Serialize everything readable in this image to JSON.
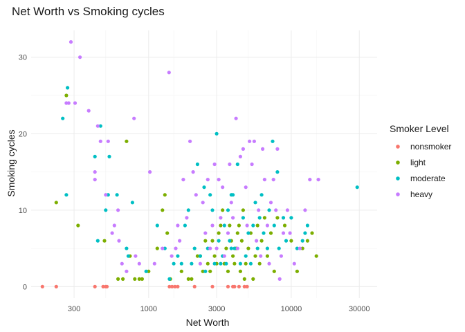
{
  "chart_data": {
    "type": "scatter",
    "title": "Net Worth vs Smoking cycles",
    "xlabel": "Net Worth",
    "ylabel": "Smoking cycles",
    "x_scale": "log10",
    "xlim": [
      150,
      40000
    ],
    "ylim": [
      -1.5,
      33.5
    ],
    "x_ticks": [
      300,
      1000,
      3000,
      10000,
      30000
    ],
    "x_tick_labels": [
      "300",
      "1000",
      "3000",
      "10000",
      "30000"
    ],
    "x_minor_ticks": [
      500,
      1500,
      5000,
      15000
    ],
    "y_ticks": [
      0,
      10,
      20,
      30
    ],
    "y_tick_labels": [
      "0",
      "10",
      "20",
      "30"
    ],
    "grid": true,
    "legend": {
      "title": "Smoker Level",
      "position": "right"
    },
    "series": [
      {
        "name": "nonsmoker",
        "color": "#F8766D",
        "points": [
          [
            180,
            0
          ],
          [
            225,
            0
          ],
          [
            420,
            0
          ],
          [
            480,
            0
          ],
          [
            500,
            0
          ],
          [
            510,
            0
          ],
          [
            1400,
            0
          ],
          [
            1460,
            0
          ],
          [
            1530,
            0
          ],
          [
            1600,
            0
          ],
          [
            2800,
            0
          ],
          [
            3600,
            0
          ],
          [
            3900,
            0
          ],
          [
            4000,
            0
          ],
          [
            4300,
            0
          ],
          [
            4700,
            0
          ],
          [
            4900,
            0
          ],
          [
            2100,
            0
          ]
        ]
      },
      {
        "name": "light",
        "color": "#7CAE00",
        "points": [
          [
            225,
            11
          ],
          [
            265,
            25
          ],
          [
            320,
            8
          ],
          [
            490,
            6
          ],
          [
            610,
            1
          ],
          [
            660,
            1
          ],
          [
            700,
            19
          ],
          [
            740,
            4
          ],
          [
            800,
            1
          ],
          [
            860,
            1
          ],
          [
            900,
            1
          ],
          [
            1000,
            2
          ],
          [
            1150,
            5
          ],
          [
            1250,
            10
          ],
          [
            1300,
            12
          ],
          [
            1350,
            7
          ],
          [
            1420,
            1
          ],
          [
            1700,
            2
          ],
          [
            1900,
            1
          ],
          [
            2000,
            1
          ],
          [
            2200,
            4
          ],
          [
            2300,
            4
          ],
          [
            2400,
            2
          ],
          [
            2500,
            6
          ],
          [
            2600,
            3
          ],
          [
            2700,
            2
          ],
          [
            2800,
            6
          ],
          [
            2900,
            4
          ],
          [
            3000,
            3
          ],
          [
            3100,
            7
          ],
          [
            3200,
            8
          ],
          [
            3300,
            10
          ],
          [
            3400,
            3
          ],
          [
            3500,
            5
          ],
          [
            3600,
            2
          ],
          [
            3700,
            8
          ],
          [
            3800,
            6
          ],
          [
            3900,
            4
          ],
          [
            4000,
            3
          ],
          [
            4100,
            5
          ],
          [
            4200,
            7
          ],
          [
            4300,
            8
          ],
          [
            4400,
            2
          ],
          [
            4500,
            6
          ],
          [
            4600,
            10
          ],
          [
            4700,
            1
          ],
          [
            4800,
            3
          ],
          [
            5000,
            5
          ],
          [
            5200,
            7
          ],
          [
            5400,
            1
          ],
          [
            5600,
            4
          ],
          [
            5800,
            8
          ],
          [
            6000,
            3
          ],
          [
            6200,
            6
          ],
          [
            6500,
            9
          ],
          [
            6800,
            4
          ],
          [
            7200,
            7
          ],
          [
            7600,
            2
          ],
          [
            8000,
            9
          ],
          [
            9000,
            8
          ],
          [
            10000,
            6
          ],
          [
            11000,
            2
          ],
          [
            12000,
            5
          ],
          [
            13000,
            6
          ],
          [
            15000,
            4
          ],
          [
            14000,
            7
          ]
        ]
      },
      {
        "name": "moderate",
        "color": "#00BFC4",
        "points": [
          [
            250,
            22
          ],
          [
            265,
            12
          ],
          [
            270,
            26
          ],
          [
            420,
            17
          ],
          [
            440,
            6
          ],
          [
            460,
            21
          ],
          [
            500,
            10
          ],
          [
            520,
            12
          ],
          [
            530,
            17
          ],
          [
            600,
            12
          ],
          [
            700,
            5
          ],
          [
            720,
            4
          ],
          [
            770,
            11
          ],
          [
            960,
            2
          ],
          [
            1150,
            8
          ],
          [
            1300,
            5
          ],
          [
            1400,
            1
          ],
          [
            1500,
            3
          ],
          [
            1600,
            4
          ],
          [
            1700,
            3
          ],
          [
            1800,
            8
          ],
          [
            1900,
            10
          ],
          [
            2000,
            3
          ],
          [
            2100,
            5
          ],
          [
            2200,
            16
          ],
          [
            2300,
            4
          ],
          [
            2450,
            13
          ],
          [
            2500,
            2
          ],
          [
            2600,
            5
          ],
          [
            2700,
            12
          ],
          [
            2800,
            10
          ],
          [
            2900,
            3
          ],
          [
            3000,
            20
          ],
          [
            3100,
            6
          ],
          [
            3200,
            3
          ],
          [
            3300,
            4
          ],
          [
            3400,
            8
          ],
          [
            3500,
            3
          ],
          [
            3600,
            10
          ],
          [
            3700,
            6
          ],
          [
            3800,
            5
          ],
          [
            3900,
            12
          ],
          [
            4000,
            5
          ],
          [
            4200,
            16
          ],
          [
            4400,
            3
          ],
          [
            4600,
            9
          ],
          [
            4800,
            4
          ],
          [
            5000,
            7
          ],
          [
            5200,
            3
          ],
          [
            5400,
            8
          ],
          [
            5600,
            11
          ],
          [
            5800,
            5
          ],
          [
            6000,
            9
          ],
          [
            6200,
            12
          ],
          [
            6400,
            7
          ],
          [
            6800,
            5
          ],
          [
            7000,
            10
          ],
          [
            7400,
            19
          ],
          [
            7600,
            8
          ],
          [
            8000,
            15
          ],
          [
            8200,
            5
          ],
          [
            8800,
            9
          ],
          [
            9200,
            6
          ],
          [
            10000,
            9
          ],
          [
            11000,
            5
          ],
          [
            12000,
            6
          ],
          [
            12500,
            7
          ],
          [
            13000,
            8
          ],
          [
            29000,
            13
          ],
          [
            3800,
            12
          ]
        ]
      },
      {
        "name": "heavy",
        "color": "#C77CFF",
        "points": [
          [
            285,
            32
          ],
          [
            330,
            30
          ],
          [
            265,
            24
          ],
          [
            275,
            24
          ],
          [
            305,
            24
          ],
          [
            380,
            23
          ],
          [
            440,
            21
          ],
          [
            460,
            19
          ],
          [
            520,
            19
          ],
          [
            420,
            15
          ],
          [
            420,
            14
          ],
          [
            500,
            12
          ],
          [
            555,
            7
          ],
          [
            575,
            8
          ],
          [
            610,
            10
          ],
          [
            620,
            6
          ],
          [
            650,
            3
          ],
          [
            700,
            2
          ],
          [
            790,
            22
          ],
          [
            810,
            4
          ],
          [
            860,
            3
          ],
          [
            1020,
            15
          ],
          [
            1100,
            3
          ],
          [
            1250,
            5
          ],
          [
            1390,
            28
          ],
          [
            1450,
            4
          ],
          [
            1550,
            5
          ],
          [
            1600,
            8
          ],
          [
            1650,
            6
          ],
          [
            1750,
            14
          ],
          [
            1850,
            9
          ],
          [
            1950,
            19
          ],
          [
            2050,
            15
          ],
          [
            2150,
            12
          ],
          [
            2300,
            3
          ],
          [
            2400,
            11
          ],
          [
            2500,
            7
          ],
          [
            2600,
            14
          ],
          [
            2700,
            5
          ],
          [
            2800,
            8
          ],
          [
            2900,
            16
          ],
          [
            3000,
            5
          ],
          [
            3100,
            14
          ],
          [
            3200,
            9
          ],
          [
            3300,
            13
          ],
          [
            3400,
            4
          ],
          [
            3600,
            7
          ],
          [
            3700,
            16
          ],
          [
            3800,
            11
          ],
          [
            3900,
            9
          ],
          [
            4100,
            22
          ],
          [
            4200,
            5
          ],
          [
            4400,
            17
          ],
          [
            4600,
            18
          ],
          [
            4800,
            13
          ],
          [
            4900,
            8
          ],
          [
            5100,
            19
          ],
          [
            5300,
            16
          ],
          [
            5500,
            19
          ],
          [
            5700,
            6
          ],
          [
            5900,
            10
          ],
          [
            6100,
            4
          ],
          [
            6300,
            18
          ],
          [
            6500,
            14
          ],
          [
            6800,
            8
          ],
          [
            7000,
            3
          ],
          [
            7200,
            11
          ],
          [
            7500,
            14
          ],
          [
            7800,
            10
          ],
          [
            8000,
            18
          ],
          [
            8300,
            1
          ],
          [
            8500,
            4
          ],
          [
            8800,
            7
          ],
          [
            9400,
            10
          ],
          [
            9800,
            7
          ],
          [
            10500,
            3
          ],
          [
            11500,
            5
          ],
          [
            12500,
            10
          ],
          [
            13500,
            14
          ],
          [
            15500,
            14
          ]
        ]
      }
    ]
  }
}
